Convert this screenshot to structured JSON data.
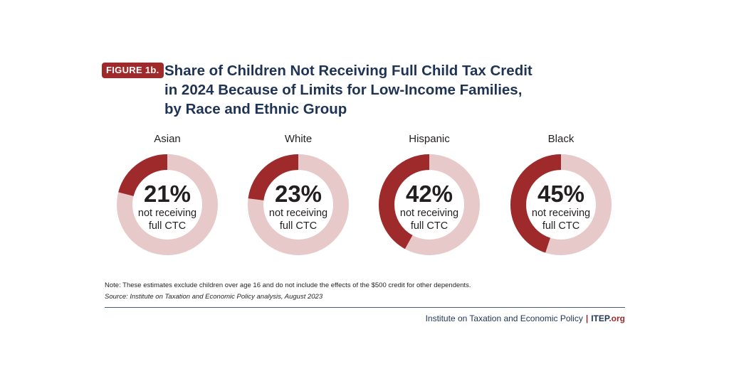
{
  "figure_badge": "FIGURE 1b.",
  "chart_data": {
    "type": "pie",
    "title": "Share of Children Not Receiving Full Child Tax Credit in 2024 Because of Limits for Low-Income Families, by Race and Ethnic Group",
    "title_lines": [
      "Share of Children Not Receiving Full Child Tax Credit",
      "in 2024 Because of Limits for Low-Income Families,",
      "by Race and Ethnic Group"
    ],
    "categories": [
      "Asian",
      "White",
      "Hispanic",
      "Black"
    ],
    "values": [
      21,
      23,
      42,
      45
    ],
    "value_labels": [
      "21%",
      "23%",
      "42%",
      "45%"
    ],
    "sub_label_lines": [
      "not receiving",
      "full CTC"
    ],
    "colors": {
      "highlight": "#9e2a2b",
      "remainder": "#e8c9c9",
      "title": "#1f3454"
    }
  },
  "note": "Note: These estimates exclude children over age 16 and do not include the effects of the $500 credit for other dependents.",
  "source": "Source: Institute on Taxation and Economic Policy analysis, August 2023",
  "footer": {
    "org_name": "Institute on Taxation and Economic Policy",
    "separator": "|",
    "brand": "ITEP",
    "brand_suffix": ".org"
  }
}
